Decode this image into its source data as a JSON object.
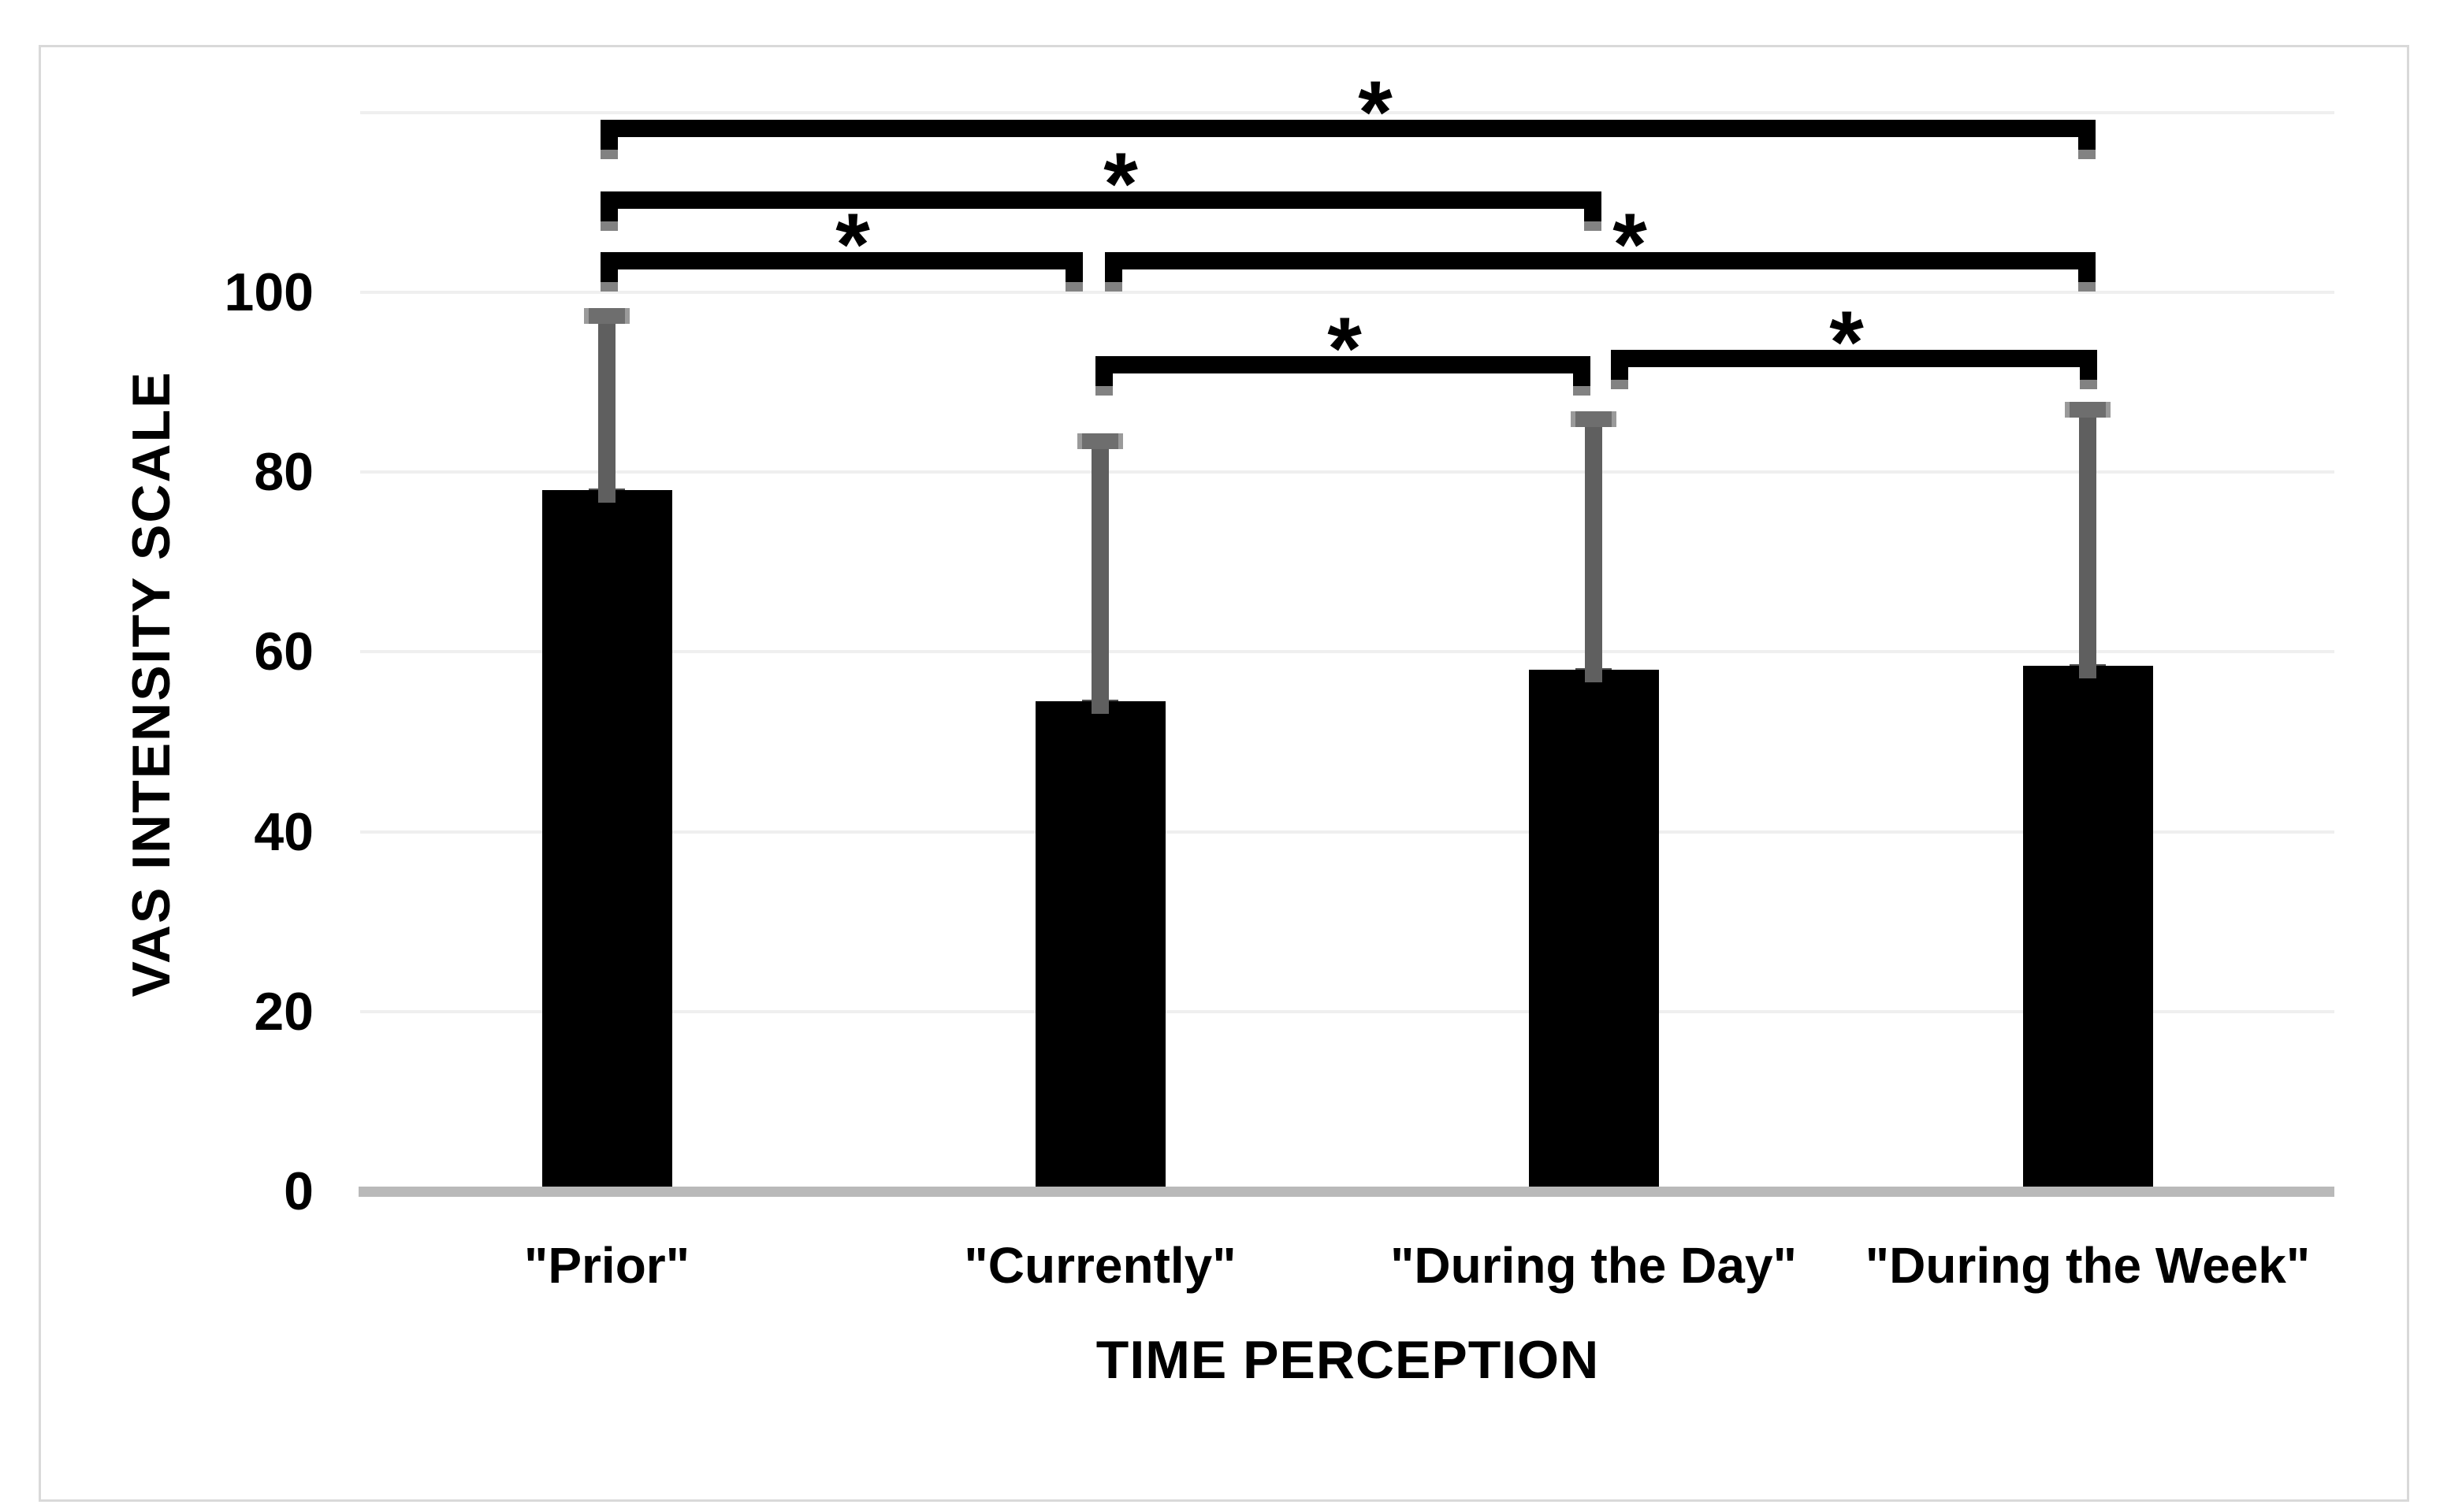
{
  "chart_data": {
    "type": "bar",
    "title": "",
    "categories": [
      "\"Prior\"",
      "\"Currently\"",
      "\"During the Day\"",
      "\"During the Week\""
    ],
    "values": [
      78,
      54.5,
      58,
      58.5
    ],
    "error_plus": [
      19.5,
      29,
      28,
      28.5
    ],
    "error_bar_tops": [
      97.5,
      83.5,
      86,
      87
    ],
    "xlabel": "TIME PERCEPTION",
    "ylabel": "VAS INTENSITY SCALE",
    "ylim": [
      0,
      120
    ],
    "yticks": [
      0,
      20,
      40,
      60,
      80,
      100
    ],
    "ytick_labels": [
      "0",
      "20",
      "40",
      "60",
      "80",
      "100"
    ],
    "grid": true,
    "legend": "none",
    "bar_color": "#000000",
    "significance": [
      {
        "from": 0,
        "to": 3,
        "marker": "*"
      },
      {
        "from": 0,
        "to": 2,
        "marker": "*"
      },
      {
        "from": 0,
        "to": 1,
        "marker": "*"
      },
      {
        "from": 1,
        "to": 3,
        "marker": "*"
      },
      {
        "from": 1,
        "to": 2,
        "marker": "*"
      },
      {
        "from": 2,
        "to": 3,
        "marker": "*"
      }
    ]
  },
  "colors": {
    "background": "#ffffff",
    "chart_border": "#d9d9d9",
    "gridline": "#efefef",
    "axis_line": "#b9b9b9",
    "bar": "#000000",
    "error_bar": "#5f5f5f",
    "error_cap": "#6e6e6e",
    "bracket": "#000000",
    "text": "#000000"
  }
}
